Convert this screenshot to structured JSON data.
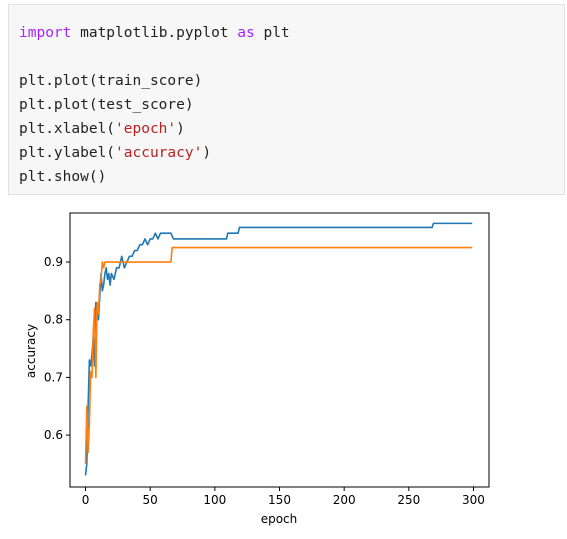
{
  "code_cell": {
    "lines": [
      {
        "tokens": [
          {
            "t": "import",
            "c": "kw"
          },
          {
            "t": " matplotlib.pyplot ",
            "c": ""
          },
          {
            "t": "as",
            "c": "kw"
          },
          {
            "t": " plt",
            "c": ""
          }
        ]
      },
      {
        "tokens": []
      },
      {
        "tokens": [
          {
            "t": "plt.plot(train_score)",
            "c": ""
          }
        ]
      },
      {
        "tokens": [
          {
            "t": "plt.plot(test_score)",
            "c": ""
          }
        ]
      },
      {
        "tokens": [
          {
            "t": "plt.xlabel(",
            "c": ""
          },
          {
            "t": "'epoch'",
            "c": "str"
          },
          {
            "t": ")",
            "c": ""
          }
        ]
      },
      {
        "tokens": [
          {
            "t": "plt.ylabel(",
            "c": ""
          },
          {
            "t": "'accuracy'",
            "c": "str"
          },
          {
            "t": ")",
            "c": ""
          }
        ]
      },
      {
        "tokens": [
          {
            "t": "plt.show()",
            "c": ""
          }
        ]
      }
    ]
  },
  "chart_data": {
    "type": "line",
    "title": "",
    "xlabel": "epoch",
    "ylabel": "accuracy",
    "xlim": [
      -12,
      312
    ],
    "ylim": [
      0.51,
      0.985
    ],
    "xticks": [
      0,
      50,
      100,
      150,
      200,
      250,
      300
    ],
    "yticks": [
      0.6,
      0.7,
      0.8,
      0.9
    ],
    "ytick_labels": [
      "0.6",
      "0.7",
      "0.8",
      "0.9"
    ],
    "grid": false,
    "series": [
      {
        "color": "#1f77b4",
        "points": [
          [
            0,
            0.53
          ],
          [
            1,
            0.55
          ],
          [
            2,
            0.65
          ],
          [
            3,
            0.73
          ],
          [
            4,
            0.72
          ],
          [
            5,
            0.74
          ],
          [
            6,
            0.77
          ],
          [
            7,
            0.72
          ],
          [
            8,
            0.83
          ],
          [
            9,
            0.81
          ],
          [
            10,
            0.8
          ],
          [
            11,
            0.84
          ],
          [
            12,
            0.88
          ],
          [
            13,
            0.85
          ],
          [
            14,
            0.86
          ],
          [
            15,
            0.88
          ],
          [
            16,
            0.89
          ],
          [
            17,
            0.87
          ],
          [
            18,
            0.88
          ],
          [
            19,
            0.86
          ],
          [
            20,
            0.88
          ],
          [
            22,
            0.87
          ],
          [
            24,
            0.89
          ],
          [
            26,
            0.89
          ],
          [
            28,
            0.91
          ],
          [
            30,
            0.89
          ],
          [
            32,
            0.9
          ],
          [
            34,
            0.91
          ],
          [
            36,
            0.91
          ],
          [
            38,
            0.92
          ],
          [
            40,
            0.92
          ],
          [
            42,
            0.93
          ],
          [
            44,
            0.93
          ],
          [
            46,
            0.94
          ],
          [
            48,
            0.93
          ],
          [
            50,
            0.94
          ],
          [
            52,
            0.94
          ],
          [
            54,
            0.95
          ],
          [
            56,
            0.94
          ],
          [
            58,
            0.95
          ],
          [
            60,
            0.95
          ],
          [
            62,
            0.95
          ],
          [
            64,
            0.95
          ],
          [
            66,
            0.95
          ],
          [
            68,
            0.94
          ],
          [
            109,
            0.94
          ],
          [
            110,
            0.95
          ],
          [
            118,
            0.95
          ],
          [
            119,
            0.96
          ],
          [
            268,
            0.96
          ],
          [
            269,
            0.967
          ],
          [
            299,
            0.967
          ]
        ]
      },
      {
        "color": "#ff7f0e",
        "points": [
          [
            0,
            0.55
          ],
          [
            1,
            0.65
          ],
          [
            2,
            0.57
          ],
          [
            3,
            0.62
          ],
          [
            4,
            0.71
          ],
          [
            5,
            0.7
          ],
          [
            6,
            0.78
          ],
          [
            7,
            0.82
          ],
          [
            8,
            0.7
          ],
          [
            9,
            0.83
          ],
          [
            10,
            0.81
          ],
          [
            11,
            0.86
          ],
          [
            12,
            0.87
          ],
          [
            13,
            0.9
          ],
          [
            14,
            0.89
          ],
          [
            15,
            0.9
          ],
          [
            66,
            0.9
          ],
          [
            67,
            0.925
          ],
          [
            299,
            0.925
          ]
        ]
      }
    ]
  }
}
